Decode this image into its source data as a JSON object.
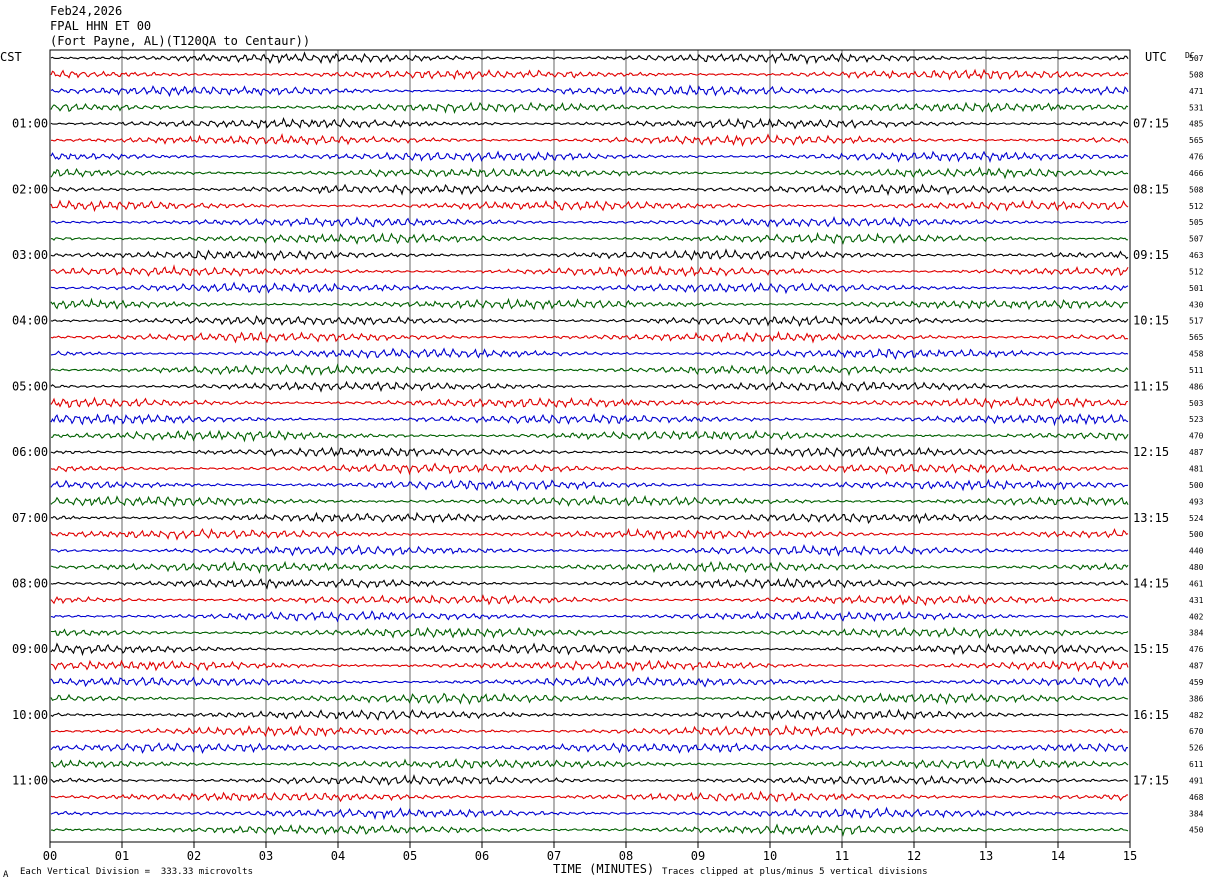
{
  "header": {
    "date": "Feb24,2026",
    "station": "FPAL HHN ET 00",
    "location": "(Fort Payne, AL)(T120QA to Centaur))"
  },
  "footer": {
    "division_note": "Each Vertical Division =  333.33 microvolts",
    "clip_note": "Traces clipped at plus/minus 5 vertical divisions",
    "corner_mark": "A"
  },
  "chart_data": {
    "type": "line",
    "title": "",
    "xlabel": "TIME (MINUTES)",
    "left_axis_label": "CST",
    "right_axis_label": "UTC",
    "dc_label": "DC",
    "xlim": [
      0,
      15
    ],
    "x_ticks": [
      "00",
      "01",
      "02",
      "03",
      "04",
      "05",
      "06",
      "07",
      "08",
      "09",
      "10",
      "11",
      "12",
      "13",
      "14",
      "15"
    ],
    "grid": "vertical lines each minute",
    "trace_colors": [
      "#000000",
      "#e00000",
      "#0000d0",
      "#006000"
    ],
    "hour_labels_cst": [
      "",
      "01:00",
      "02:00",
      "03:00",
      "04:00",
      "05:00",
      "06:00",
      "07:00",
      "08:00",
      "09:00",
      "10:00",
      "11:00"
    ],
    "hour_labels_utc": [
      "",
      "07:15",
      "08:15",
      "09:15",
      "10:15",
      "11:15",
      "12:15",
      "13:15",
      "14:15",
      "15:15",
      "16:15",
      "17:15"
    ],
    "dc_offsets": [
      507,
      508,
      471,
      531,
      485,
      565,
      476,
      466,
      508,
      512,
      505,
      507,
      463,
      512,
      501,
      430,
      517,
      565,
      458,
      511,
      486,
      503,
      523,
      470,
      487,
      481,
      500,
      493,
      524,
      500,
      440,
      480,
      461,
      431,
      402,
      384,
      476,
      487,
      459,
      386,
      482,
      670,
      526,
      611,
      491,
      468,
      384,
      450
    ]
  }
}
